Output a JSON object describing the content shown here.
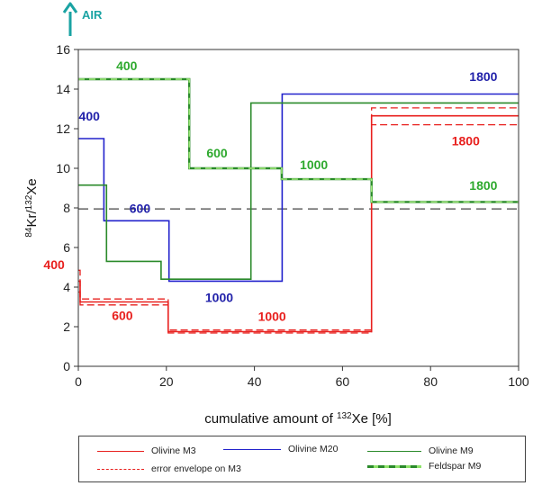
{
  "chart_data": {
    "type": "line",
    "subtype": "step",
    "xlabel_pre": "cumulative amount of ",
    "xlabel_sup": "132",
    "xlabel_post": "Xe [%]",
    "ylabel_sup1": "84",
    "ylabel_mid": "Kr/",
    "ylabel_sup2": "132",
    "ylabel_post": "Xe",
    "xlim": [
      0,
      100
    ],
    "ylim": [
      0,
      16
    ],
    "xticks": [
      0,
      20,
      40,
      60,
      80,
      100
    ],
    "yticks": [
      0,
      2,
      4,
      6,
      8,
      10,
      12,
      14,
      16
    ],
    "grid": false,
    "legend_position": "bottom",
    "reference_line": {
      "label": "AIR",
      "y": 7.95,
      "color": "#444444",
      "style": "dashed"
    },
    "series": [
      {
        "name": "Olivine M3",
        "color": "#e8201e",
        "style": "solid",
        "x": [
          0,
          0.4,
          0.4,
          20.4,
          20.4,
          66.6,
          66.6,
          100
        ],
        "y": [
          4.3,
          4.3,
          3.25,
          3.25,
          1.75,
          1.75,
          12.65,
          12.65
        ]
      },
      {
        "name": "error envelope on M3",
        "color": "#e8201e",
        "style": "dashed",
        "x": [
          0,
          0.4,
          0.4,
          20.4,
          20.4,
          66.6,
          66.6,
          100
        ],
        "y": [
          4.85,
          4.85,
          3.4,
          3.4,
          1.83,
          1.83,
          13.05,
          13.05
        ]
      },
      {
        "name": "error envelope on M3",
        "color": "#e8201e",
        "style": "dashed",
        "x": [
          0,
          0.4,
          0.4,
          20.4,
          20.4,
          66.6,
          66.6,
          100
        ],
        "y": [
          3.75,
          3.75,
          3.1,
          3.1,
          1.68,
          1.68,
          12.2,
          12.2
        ]
      },
      {
        "name": "Olivine M20",
        "color": "#2222cc",
        "style": "solid",
        "x": [
          0,
          5.8,
          5.8,
          20.6,
          20.6,
          46.3,
          46.3,
          100
        ],
        "y": [
          11.5,
          11.5,
          7.35,
          7.35,
          4.3,
          4.3,
          13.75,
          13.75
        ]
      },
      {
        "name": "Olivine M9",
        "color": "#2a8a2a",
        "style": "solid",
        "x": [
          0,
          6.4,
          6.4,
          18.8,
          18.8,
          39.2,
          39.2,
          100
        ],
        "y": [
          9.15,
          9.15,
          5.3,
          5.3,
          4.4,
          4.4,
          13.3,
          13.3
        ]
      },
      {
        "name": "Feldspar M9",
        "color": "#5cc83a",
        "style": "dashed",
        "x": [
          0,
          25.2,
          25.2,
          46.2,
          46.2,
          66.6,
          66.6,
          100
        ],
        "y": [
          14.5,
          14.5,
          10.0,
          10.0,
          9.45,
          9.45,
          8.3,
          8.3
        ]
      }
    ],
    "annotations": [
      {
        "text": "400",
        "x": 11,
        "y": 14.95,
        "color": "#2ea92e"
      },
      {
        "text": "600",
        "x": 31.5,
        "y": 10.55,
        "color": "#2ea92e"
      },
      {
        "text": "1000",
        "x": 53.5,
        "y": 9.95,
        "color": "#2ea92e"
      },
      {
        "text": "1800",
        "x": 92,
        "y": 8.9,
        "color": "#2ea92e"
      },
      {
        "text": "400",
        "x": 2.5,
        "y": 12.4,
        "color": "#2222aa"
      },
      {
        "text": "600",
        "x": 14,
        "y": 7.75,
        "color": "#2222aa"
      },
      {
        "text": "1000",
        "x": 32,
        "y": 3.25,
        "color": "#2222aa"
      },
      {
        "text": "1800",
        "x": 92,
        "y": 14.4,
        "color": "#2222aa"
      },
      {
        "text": "400",
        "x": -5.5,
        "y": 4.9,
        "color": "#e8201e"
      },
      {
        "text": "600",
        "x": 10,
        "y": 2.35,
        "color": "#e8201e"
      },
      {
        "text": "1000",
        "x": 44,
        "y": 2.3,
        "color": "#e8201e"
      },
      {
        "text": "1800",
        "x": 88,
        "y": 11.15,
        "color": "#e8201e"
      }
    ],
    "legend": [
      {
        "name": "Olivine M3",
        "color": "#e8201e",
        "style": "solid"
      },
      {
        "name": "Olivine M20",
        "color": "#2222cc",
        "style": "solid"
      },
      {
        "name": "Olivine M9",
        "color": "#2a8a2a",
        "style": "solid"
      },
      {
        "name": "error envelope on M3",
        "color": "#e8201e",
        "style": "dashed"
      },
      {
        "name": "Feldspar M9",
        "color": "#5cc83a",
        "style": "dashed-light"
      }
    ]
  }
}
